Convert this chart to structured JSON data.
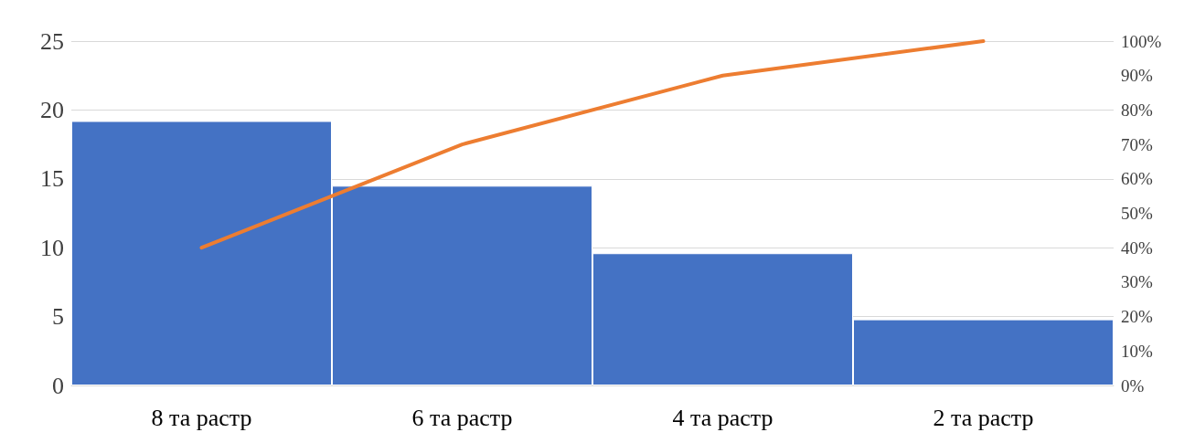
{
  "chart_data": {
    "type": "bar",
    "categories": [
      "8 та растр",
      "6 та растр",
      "4 та растр",
      "2 та растр"
    ],
    "series": [
      {
        "color": "#4472c4",
        "values": [
          19.2,
          14.5,
          9.6,
          4.8
        ]
      },
      {
        "type": "line",
        "axis": "y2",
        "color": "#ed7d31",
        "values": [
          40,
          70,
          90,
          100
        ],
        "marker": "none"
      }
    ],
    "ylim": [
      0,
      25
    ],
    "yticks": [
      0,
      5,
      10,
      15,
      20,
      25
    ],
    "y2lim": [
      0,
      100
    ],
    "y2ticks": [
      {
        "value": 0,
        "label": "0%"
      },
      {
        "value": 10,
        "label": "10%"
      },
      {
        "value": 20,
        "label": "20%"
      },
      {
        "value": 30,
        "label": "30%"
      },
      {
        "value": 40,
        "label": "40%"
      },
      {
        "value": 50,
        "label": "50%"
      },
      {
        "value": 60,
        "label": "60%"
      },
      {
        "value": 70,
        "label": "70%"
      },
      {
        "value": 80,
        "label": "80%"
      },
      {
        "value": 90,
        "label": "90%"
      },
      {
        "value": 100,
        "label": "100%"
      }
    ],
    "grid": "y"
  }
}
